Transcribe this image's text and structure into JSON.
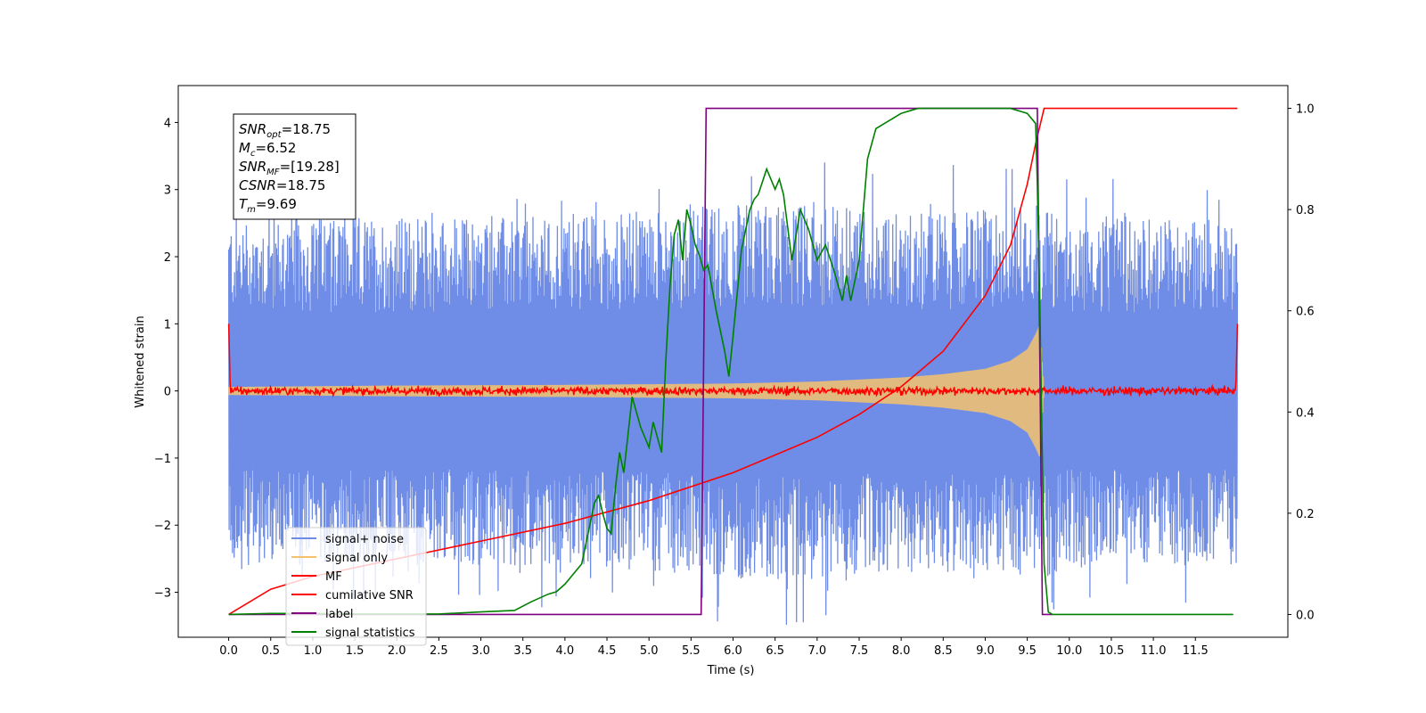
{
  "chart_data": {
    "type": "line",
    "xlabel": "Time (s)",
    "ylabel": "Whitened strain",
    "xlim": [
      -0.6,
      12.6
    ],
    "ylim": [
      -3.67,
      4.55
    ],
    "y2lim": [
      -0.045,
      1.045
    ],
    "x_ticks": [
      "0.0",
      "0.5",
      "1.0",
      "1.5",
      "2.0",
      "2.5",
      "3.0",
      "3.5",
      "4.0",
      "4.5",
      "5.0",
      "5.5",
      "6.0",
      "6.5",
      "7.0",
      "7.5",
      "8.0",
      "8.5",
      "9.0",
      "9.5",
      "10.0",
      "10.5",
      "11.0",
      "11.5"
    ],
    "y_ticks": [
      "4",
      "3",
      "2",
      "1",
      "0",
      "−1",
      "−2",
      "−3"
    ],
    "y2_ticks": [
      "1.0",
      "0.8",
      "0.6",
      "0.4",
      "0.2",
      "0.0"
    ],
    "grid": false,
    "legend_position": "lower-left",
    "annotation": {
      "lines": [
        {
          "main": "SNR",
          "sub": "opt",
          "rest": "=18.75"
        },
        {
          "main": "M",
          "sub": "c",
          "rest": "=6.52"
        },
        {
          "main": "SNR",
          "sub": "MF",
          "rest": "=[19.28]"
        },
        {
          "main": "CSNR",
          "sub": "",
          "rest": "=18.75"
        },
        {
          "main": "T",
          "sub": "m",
          "rest": "=9.69"
        }
      ]
    },
    "series": [
      {
        "name": "signal+ noise",
        "color": "#6f8de6",
        "axis": "left",
        "kind": "noise",
        "x_range": [
          0.0,
          12.0
        ],
        "envelope_x": [
          0,
          1,
          2,
          3,
          4,
          5,
          6,
          7,
          8,
          9,
          9.5,
          9.7,
          10,
          11,
          12
        ],
        "envelope_pos": [
          2.6,
          2.6,
          2.6,
          2.6,
          2.6,
          2.7,
          2.8,
          2.8,
          2.7,
          2.7,
          2.8,
          2.8,
          2.6,
          2.6,
          2.6
        ],
        "envelope_neg": [
          -2.6,
          -2.6,
          -2.6,
          -2.6,
          -2.6,
          -2.7,
          -2.8,
          -2.8,
          -2.7,
          -2.7,
          -2.8,
          -2.8,
          -2.6,
          -2.6,
          -2.6
        ]
      },
      {
        "name": "signal only",
        "color": "#f5c26b",
        "axis": "left",
        "kind": "chirp",
        "x_range": [
          0.0,
          9.7
        ],
        "amplitude_x": [
          0,
          2,
          4,
          6,
          7,
          8,
          8.5,
          9,
          9.3,
          9.5,
          9.6,
          9.65,
          9.7
        ],
        "amplitude": [
          0.06,
          0.08,
          0.09,
          0.11,
          0.14,
          0.2,
          0.25,
          0.33,
          0.45,
          0.62,
          0.85,
          1.0,
          0.0
        ]
      },
      {
        "name": "MF",
        "color": "#ff0000",
        "axis": "left",
        "kind": "mf",
        "x_range": [
          0.0,
          12.0
        ],
        "baseline": 0.0,
        "jitter": 0.05,
        "edge_value": 1.0
      },
      {
        "name": "cumilative SNR",
        "color": "#ff0000",
        "axis": "right",
        "x": [
          0.0,
          0.5,
          1.0,
          2.0,
          3.0,
          4.0,
          5.0,
          6.0,
          7.0,
          7.5,
          8.0,
          8.5,
          9.0,
          9.3,
          9.5,
          9.6,
          9.7,
          10.0,
          12.0
        ],
        "y": [
          0.0,
          0.05,
          0.075,
          0.11,
          0.145,
          0.18,
          0.225,
          0.28,
          0.35,
          0.395,
          0.45,
          0.52,
          0.63,
          0.73,
          0.85,
          0.93,
          1.0,
          1.0,
          1.0
        ]
      },
      {
        "name": "label",
        "color": "#800080",
        "axis": "right",
        "x": [
          0.0,
          5.62,
          5.68,
          9.62,
          9.68,
          9.8
        ],
        "y": [
          0.0,
          0.0,
          1.0,
          1.0,
          0.0,
          0.0
        ]
      },
      {
        "name": "signal statistics",
        "color": "#008000",
        "axis": "right",
        "x": [
          0.0,
          0.5,
          1.0,
          1.5,
          2.0,
          2.5,
          3.0,
          3.4,
          3.6,
          3.8,
          3.9,
          4.0,
          4.2,
          4.3,
          4.35,
          4.4,
          4.45,
          4.5,
          4.55,
          4.6,
          4.65,
          4.7,
          4.8,
          4.9,
          5.0,
          5.05,
          5.1,
          5.15,
          5.2,
          5.25,
          5.3,
          5.35,
          5.4,
          5.45,
          5.5,
          5.55,
          5.6,
          5.65,
          5.7,
          5.8,
          5.9,
          5.95,
          6.0,
          6.1,
          6.2,
          6.25,
          6.3,
          6.4,
          6.5,
          6.55,
          6.6,
          6.7,
          6.8,
          6.9,
          7.0,
          7.1,
          7.2,
          7.3,
          7.35,
          7.4,
          7.5,
          7.6,
          7.7,
          7.8,
          7.9,
          8.0,
          8.2,
          8.5,
          9.0,
          9.3,
          9.5,
          9.6,
          9.62,
          9.65,
          9.7,
          9.75,
          9.8,
          11.0,
          11.95
        ],
        "y": [
          0.0,
          0.002,
          0.002,
          0.001,
          0.001,
          0.001,
          0.005,
          0.008,
          0.025,
          0.04,
          0.045,
          0.06,
          0.1,
          0.18,
          0.22,
          0.235,
          0.2,
          0.17,
          0.16,
          0.25,
          0.32,
          0.28,
          0.43,
          0.37,
          0.33,
          0.38,
          0.35,
          0.32,
          0.5,
          0.65,
          0.75,
          0.78,
          0.7,
          0.8,
          0.77,
          0.73,
          0.71,
          0.68,
          0.69,
          0.6,
          0.52,
          0.47,
          0.55,
          0.72,
          0.8,
          0.82,
          0.83,
          0.88,
          0.84,
          0.86,
          0.83,
          0.7,
          0.8,
          0.76,
          0.7,
          0.73,
          0.68,
          0.62,
          0.67,
          0.62,
          0.7,
          0.9,
          0.96,
          0.97,
          0.98,
          0.99,
          1.0,
          1.0,
          1.0,
          1.0,
          0.99,
          0.97,
          0.85,
          0.6,
          0.1,
          0.005,
          0.0,
          0.0,
          0.0
        ]
      }
    ]
  }
}
